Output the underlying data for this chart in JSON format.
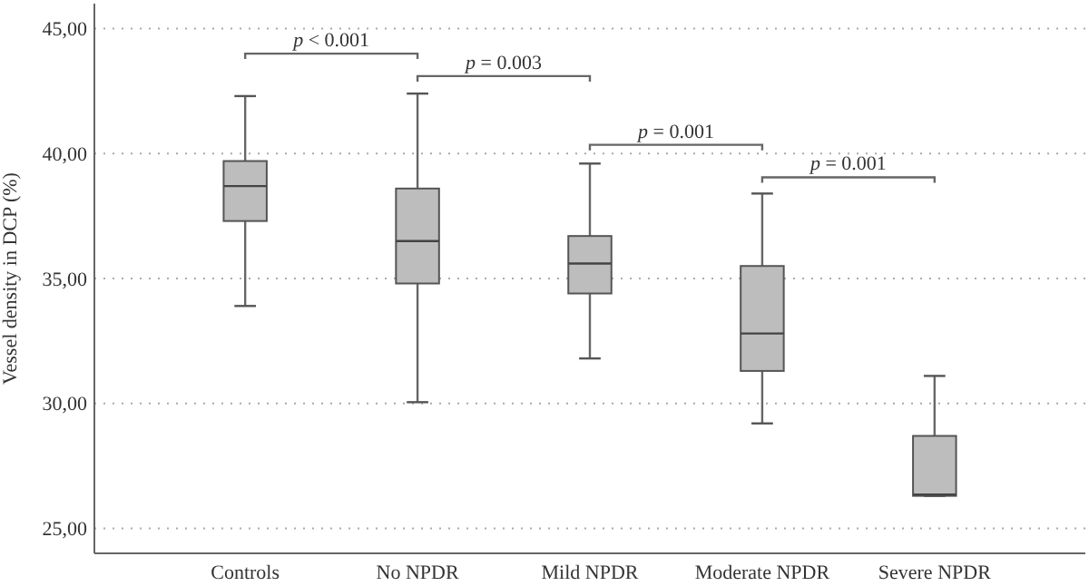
{
  "chart_data": {
    "type": "box",
    "ylabel": "Vessel density in DCP (%)",
    "categories": [
      "Controls",
      "No NPDR",
      "Mild NPDR",
      "Moderate NPDR",
      "Severe NPDR"
    ],
    "boxes": [
      {
        "low": 33.9,
        "q1": 37.3,
        "median": 38.7,
        "q3": 39.7,
        "high": 42.3
      },
      {
        "low": 30.05,
        "q1": 34.8,
        "median": 36.5,
        "q3": 38.6,
        "high": 42.4
      },
      {
        "low": 31.8,
        "q1": 34.4,
        "median": 35.6,
        "q3": 36.7,
        "high": 39.6
      },
      {
        "low": 29.2,
        "q1": 31.3,
        "median": 32.8,
        "q3": 35.5,
        "high": 38.4
      },
      {
        "low": 26.3,
        "q1": 26.3,
        "median": 26.35,
        "q3": 28.7,
        "high": 31.1
      }
    ],
    "color": "#bdbdbd",
    "ylim": [
      24,
      46
    ],
    "yticks": [
      {
        "value": 25,
        "label": "25,00"
      },
      {
        "value": 30,
        "label": "30,00"
      },
      {
        "value": 35,
        "label": "35,00"
      },
      {
        "value": 40,
        "label": "40,00"
      },
      {
        "value": 45,
        "label": "45,00"
      }
    ],
    "grid": "y",
    "annotations": [
      "p < 0.001",
      "p = 0.003",
      "p = 0.001",
      "p = 0.001"
    ]
  }
}
